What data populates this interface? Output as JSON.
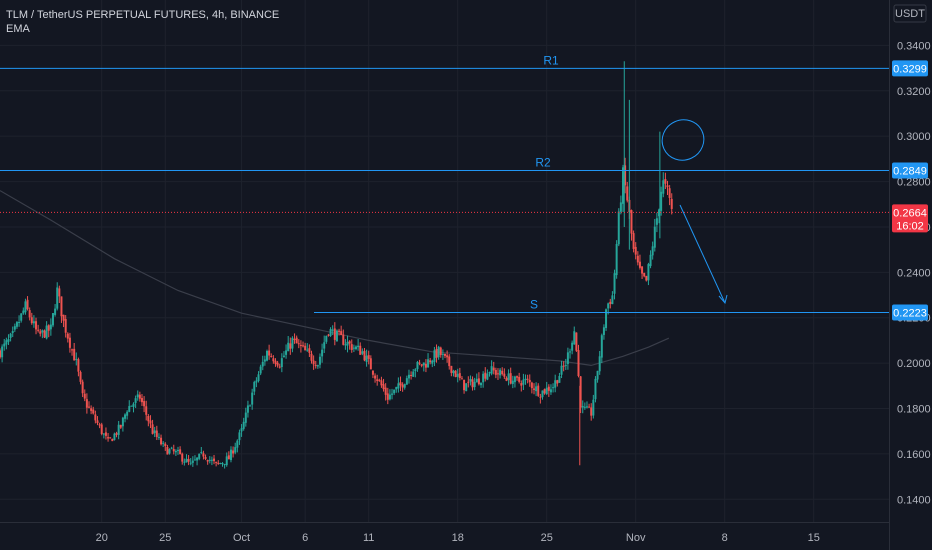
{
  "header": {
    "title": "TLM / TetherUS PERPETUAL FUTURES, 4h, BINANCE",
    "indicator": "EMA"
  },
  "currency": "USDT",
  "colors": {
    "background": "#131722",
    "grid": "#1e222d",
    "up": "#26a69a",
    "down": "#ef5350",
    "level": "#2196f3",
    "ema": "#3a3e4a",
    "axis_text": "#b2b5be",
    "price_badge": "#f23645"
  },
  "chart_data": {
    "type": "candlestick",
    "title": "TLM / TetherUS PERPETUAL FUTURES, 4h, BINANCE",
    "ylim": [
      0.13,
      0.36
    ],
    "y_ticks": [
      "0.3400",
      "0.3200",
      "0.3000",
      "0.2800",
      "0.2600",
      "0.2400",
      "0.2200",
      "0.2000",
      "0.1800",
      "0.1600",
      "0.1400"
    ],
    "x_ticks": [
      "20",
      "25",
      "Oct",
      "6",
      "11",
      "18",
      "25",
      "Nov",
      "8",
      "15"
    ],
    "x_tick_days": [
      20,
      25,
      31,
      36,
      41,
      48,
      55,
      62,
      69,
      76
    ],
    "x_range_days": [
      12,
      82
    ],
    "levels": [
      {
        "label": "R1",
        "value": 0.3299,
        "badge": "0.3299"
      },
      {
        "label": "R2",
        "value": 0.2849,
        "badge": "0.2849"
      },
      {
        "label": "S",
        "value": 0.2223,
        "badge": "0.2223"
      }
    ],
    "last_price": {
      "value": 0.2664,
      "label": "0.2664",
      "countdown": "16:02"
    },
    "price_path": [
      [
        12.0,
        0.205
      ],
      [
        13.0,
        0.212
      ],
      [
        14.0,
        0.225
      ],
      [
        15.0,
        0.212
      ],
      [
        16.0,
        0.215
      ],
      [
        16.5,
        0.232
      ],
      [
        17.0,
        0.218
      ],
      [
        18.0,
        0.2
      ],
      [
        18.5,
        0.185
      ],
      [
        19.5,
        0.175
      ],
      [
        20.5,
        0.165
      ],
      [
        21.5,
        0.172
      ],
      [
        22.0,
        0.18
      ],
      [
        23.0,
        0.185
      ],
      [
        24.0,
        0.17
      ],
      [
        25.0,
        0.162
      ],
      [
        26.0,
        0.16
      ],
      [
        27.0,
        0.155
      ],
      [
        28.0,
        0.16
      ],
      [
        29.0,
        0.155
      ],
      [
        30.0,
        0.158
      ],
      [
        31.0,
        0.17
      ],
      [
        32.0,
        0.19
      ],
      [
        33.0,
        0.205
      ],
      [
        34.0,
        0.2
      ],
      [
        35.0,
        0.21
      ],
      [
        36.0,
        0.205
      ],
      [
        37.0,
        0.2
      ],
      [
        37.8,
        0.215
      ],
      [
        38.5,
        0.212
      ],
      [
        39.5,
        0.208
      ],
      [
        40.5,
        0.205
      ],
      [
        41.5,
        0.195
      ],
      [
        42.5,
        0.185
      ],
      [
        43.5,
        0.19
      ],
      [
        44.5,
        0.198
      ],
      [
        45.5,
        0.2
      ],
      [
        46.5,
        0.205
      ],
      [
        47.5,
        0.198
      ],
      [
        48.5,
        0.19
      ],
      [
        49.5,
        0.192
      ],
      [
        50.5,
        0.197
      ],
      [
        51.5,
        0.195
      ],
      [
        52.5,
        0.192
      ],
      [
        53.5,
        0.192
      ],
      [
        54.5,
        0.187
      ],
      [
        55.5,
        0.19
      ],
      [
        56.5,
        0.2
      ],
      [
        57.2,
        0.215
      ],
      [
        57.7,
        0.18
      ],
      [
        58.5,
        0.178
      ],
      [
        59.2,
        0.205
      ],
      [
        59.7,
        0.225
      ],
      [
        60.2,
        0.23
      ],
      [
        60.6,
        0.26
      ],
      [
        61.0,
        0.283
      ],
      [
        61.4,
        0.27
      ],
      [
        61.8,
        0.25
      ],
      [
        62.3,
        0.24
      ],
      [
        62.8,
        0.235
      ],
      [
        63.2,
        0.248
      ],
      [
        63.7,
        0.265
      ],
      [
        64.1,
        0.28
      ],
      [
        64.5,
        0.275
      ],
      [
        64.9,
        0.2664
      ]
    ],
    "ema": [
      [
        12.0,
        0.276
      ],
      [
        16.0,
        0.263
      ],
      [
        21.0,
        0.246
      ],
      [
        26.0,
        0.232
      ],
      [
        31.0,
        0.222
      ],
      [
        36.0,
        0.216
      ],
      [
        41.0,
        0.21
      ],
      [
        46.0,
        0.205
      ],
      [
        51.0,
        0.203
      ],
      [
        56.0,
        0.201
      ],
      [
        58.5,
        0.199
      ],
      [
        61.0,
        0.203
      ],
      [
        63.0,
        0.207
      ],
      [
        64.6,
        0.211
      ]
    ]
  }
}
